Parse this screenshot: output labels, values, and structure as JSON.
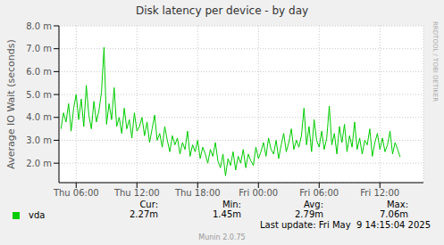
{
  "chart_data": {
    "type": "line",
    "title": "Disk latency per device - by day",
    "y_label": "Average IO Wait (seconds)",
    "watermark": "RRDTOOL / TOBI OETIKER",
    "last_update": "Last update: Fri May  9 14:15:04 2025",
    "footer": "Munin 2.0.75",
    "grid": true,
    "legend": "bottom",
    "x": [
      4.5,
      4.75,
      5,
      5.25,
      5.5,
      5.75,
      6,
      6.25,
      6.5,
      6.75,
      7,
      7.25,
      7.5,
      7.75,
      8,
      8.25,
      8.5,
      8.75,
      9,
      9.25,
      9.5,
      9.75,
      10,
      10.25,
      10.5,
      10.75,
      11,
      11.25,
      11.5,
      11.75,
      12,
      12.25,
      12.5,
      12.75,
      13,
      13.25,
      13.5,
      13.75,
      14,
      14.25,
      14.5,
      14.75,
      15,
      15.25,
      15.5,
      15.75,
      16,
      16.25,
      16.5,
      16.75,
      17,
      17.25,
      17.5,
      17.75,
      18,
      18.25,
      18.5,
      18.75,
      19,
      19.25,
      19.5,
      19.75,
      20,
      20.25,
      20.5,
      20.75,
      21,
      21.25,
      21.5,
      21.75,
      22,
      22.25,
      22.5,
      22.75,
      23,
      23.25,
      23.5,
      23.75,
      24,
      24.25,
      24.5,
      24.75,
      25,
      25.25,
      25.5,
      25.75,
      26,
      26.25,
      26.5,
      26.75,
      27,
      27.25,
      27.5,
      27.75,
      28,
      28.25,
      28.5,
      28.75,
      29,
      29.25,
      29.5,
      29.75,
      30,
      30.25,
      30.5,
      30.75,
      31,
      31.25,
      31.5,
      31.75,
      32,
      32.25,
      32.5,
      32.75,
      33,
      33.25,
      33.5,
      33.75,
      34,
      34.25,
      34.5,
      34.75,
      35,
      35.25,
      35.5,
      35.75,
      36,
      36.25,
      36.5,
      36.75,
      37,
      37.25,
      37.5,
      37.75,
      38
    ],
    "series": [
      {
        "name": "vda",
        "color": "#00cc00",
        "values": [
          0.0035,
          0.0042,
          0.0038,
          0.0046,
          0.0034,
          0.0044,
          0.005,
          0.0039,
          0.0048,
          0.0036,
          0.0054,
          0.0041,
          0.0035,
          0.0047,
          0.0038,
          0.0043,
          0.0051,
          0.00706,
          0.0037,
          0.0046,
          0.0039,
          0.0053,
          0.0036,
          0.004,
          0.0033,
          0.0044,
          0.0035,
          0.0039,
          0.0031,
          0.0042,
          0.0034,
          0.0036,
          0.004,
          0.0032,
          0.0038,
          0.0029,
          0.0035,
          0.0041,
          0.003,
          0.0033,
          0.0027,
          0.0036,
          0.003,
          0.0025,
          0.0032,
          0.0028,
          0.0031,
          0.0024,
          0.0029,
          0.0026,
          0.0034,
          0.0023,
          0.0028,
          0.0025,
          0.003,
          0.0022,
          0.0027,
          0.0024,
          0.002,
          0.0026,
          0.0023,
          0.0029,
          0.0021,
          0.0018,
          0.0024,
          0.00145,
          0.0022,
          0.0019,
          0.0025,
          0.0017,
          0.0023,
          0.002,
          0.0026,
          0.0018,
          0.0024,
          0.0021,
          0.0019,
          0.0027,
          0.0022,
          0.0025,
          0.0029,
          0.0023,
          0.0031,
          0.0026,
          0.0024,
          0.003,
          0.0022,
          0.0028,
          0.0033,
          0.0025,
          0.0029,
          0.0035,
          0.0026,
          0.003,
          0.0027,
          0.0032,
          0.0044,
          0.0028,
          0.0036,
          0.0025,
          0.0039,
          0.003,
          0.0027,
          0.0034,
          0.0026,
          0.0031,
          0.0045,
          0.0028,
          0.0033,
          0.0024,
          0.0036,
          0.0029,
          0.0037,
          0.0025,
          0.0032,
          0.0027,
          0.0038,
          0.0026,
          0.0031,
          0.0024,
          0.003,
          0.0028,
          0.0035,
          0.0023,
          0.0029,
          0.0033,
          0.0026,
          0.0031,
          0.0025,
          0.0028,
          0.0034,
          0.0024,
          0.0029,
          0.0026,
          0.00227
        ]
      }
    ],
    "stats": {
      "labels": [
        "Cur:",
        "Min:",
        "Avg:",
        "Max:"
      ],
      "values": [
        0.00227,
        0.00145,
        0.00279,
        0.00706
      ],
      "value_labels": [
        "2.27m",
        "1.45m",
        "2.79m",
        "7.06m"
      ]
    },
    "xlim": [
      4.3,
      40.3
    ],
    "xticks": [
      {
        "value": 6,
        "label": "Thu 06:00"
      },
      {
        "value": 12,
        "label": "Thu 12:00"
      },
      {
        "value": 18,
        "label": "Thu 18:00"
      },
      {
        "value": 24,
        "label": "Fri 00:00"
      },
      {
        "value": 30,
        "label": "Fri 06:00"
      },
      {
        "value": 36,
        "label": "Fri 12:00"
      }
    ],
    "ylim": [
      0.00115,
      0.008
    ],
    "yticks": [
      {
        "value": 0.002,
        "label": "2.0 m"
      },
      {
        "value": 0.003,
        "label": "3.0 m"
      },
      {
        "value": 0.004,
        "label": "4.0 m"
      },
      {
        "value": 0.005,
        "label": "5.0 m"
      },
      {
        "value": 0.006,
        "label": "6.0 m"
      },
      {
        "value": 0.007,
        "label": "7.0 m"
      },
      {
        "value": 0.008,
        "label": "8.0 m"
      }
    ]
  }
}
